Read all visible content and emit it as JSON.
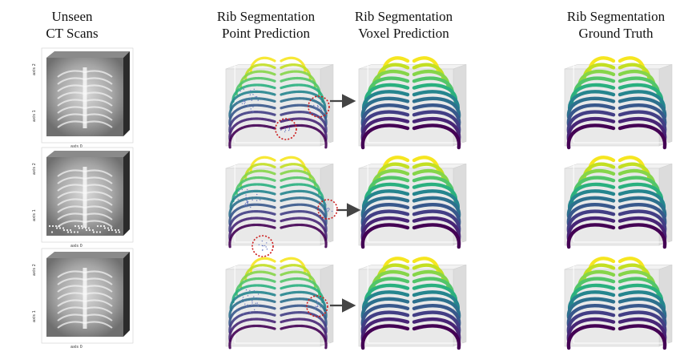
{
  "headers": {
    "ct_scans": [
      "Unseen",
      "CT Scans"
    ],
    "point_prediction": [
      "Rib Segmentation",
      "Point Prediction"
    ],
    "voxel_prediction": [
      "Rib Segmentation",
      "Voxel Prediction"
    ],
    "ground_truth": [
      "Rib Segmentation",
      "Ground Truth"
    ]
  },
  "ct_axis_labels": [
    "axis 0",
    "axis 1",
    "axis 2"
  ],
  "colors": {
    "viridis_dark": "#440154",
    "viridis_mid": "#21918c",
    "viridis_light": "#fde725",
    "error_circle": "#cc1f1f",
    "arrow": "#444444",
    "box_face": "#e9e9e9"
  }
}
